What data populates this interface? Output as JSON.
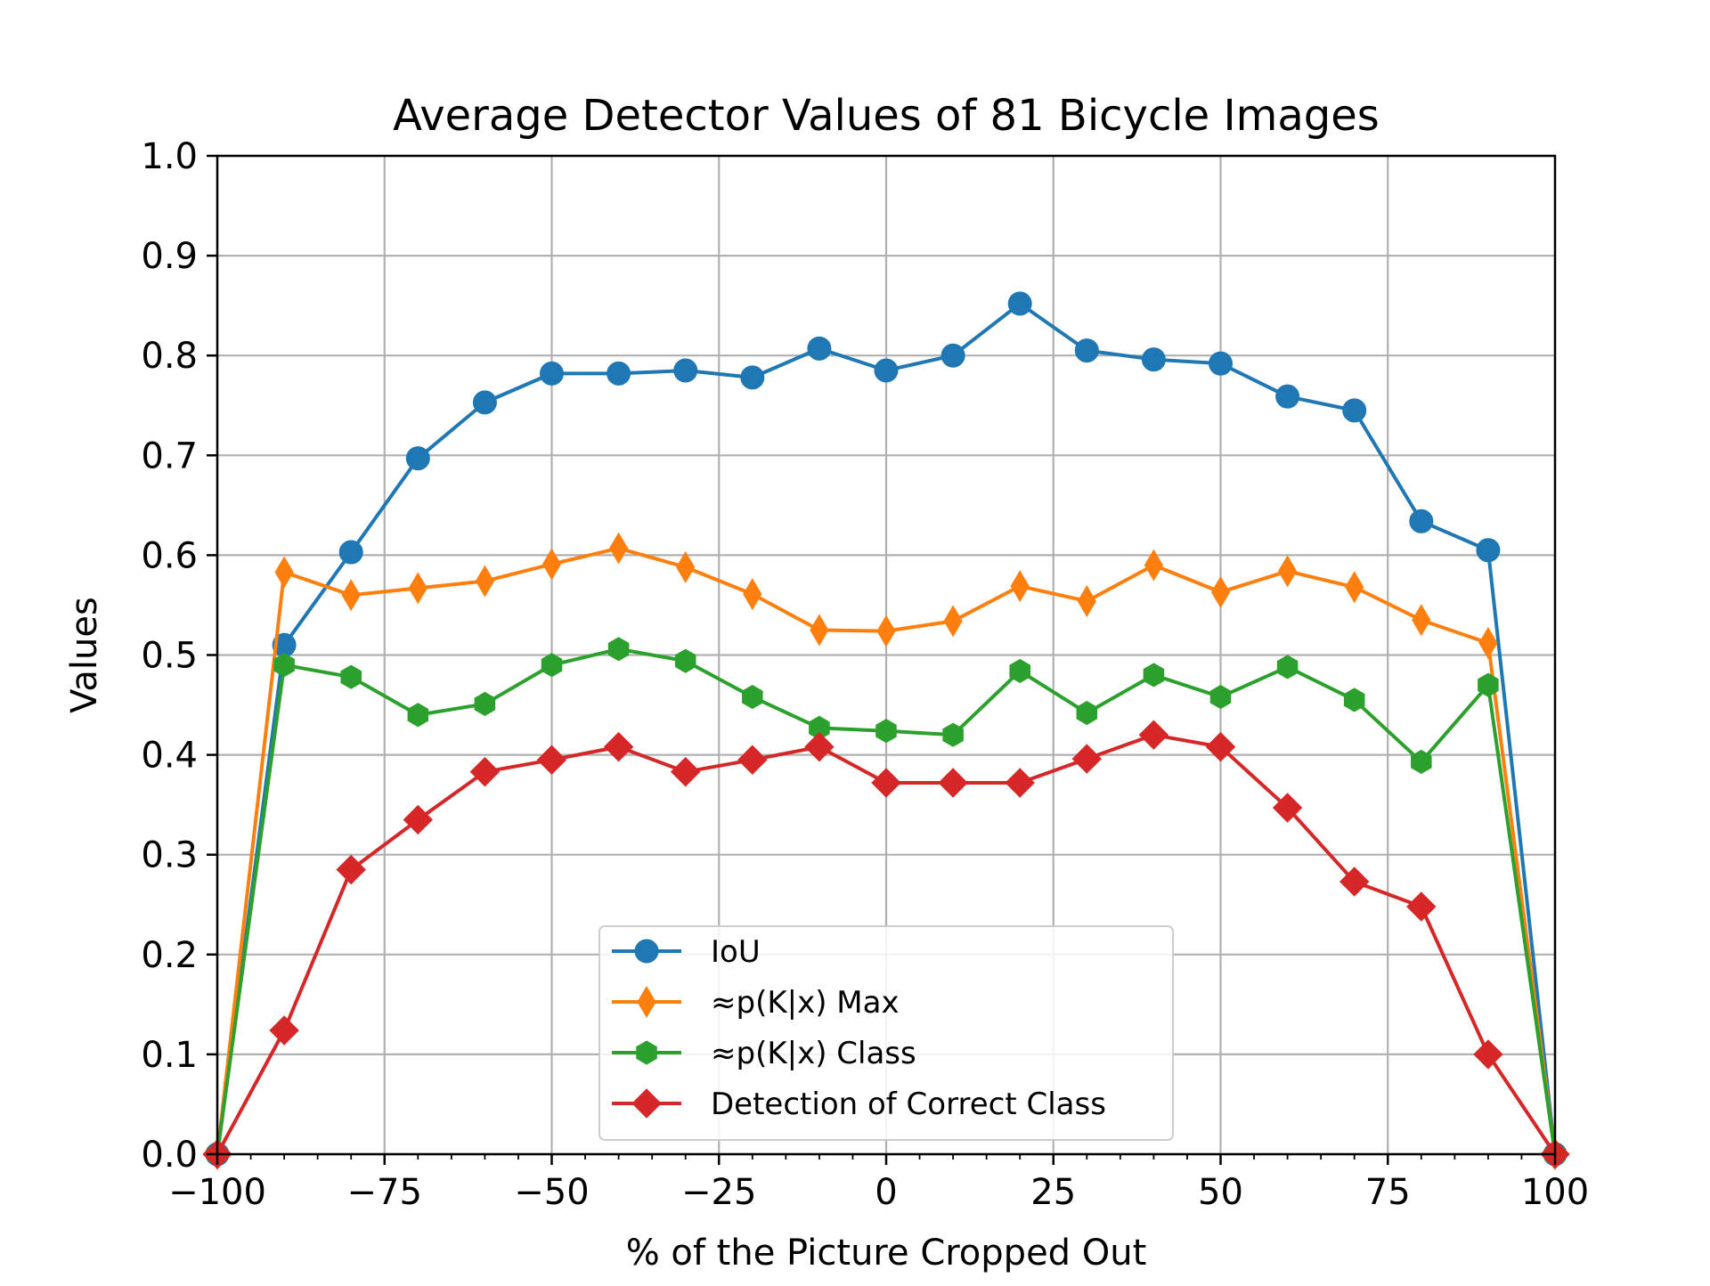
{
  "chart_data": {
    "type": "line",
    "title": "Average Detector Values of 81 Bicycle Images",
    "xlabel": "% of the Picture Cropped Out",
    "ylabel": "Values",
    "xlim": [
      -100,
      100
    ],
    "ylim": [
      0.0,
      1.0
    ],
    "grid": true,
    "legend_position": "lower center",
    "x_ticks": [
      -100,
      -75,
      -50,
      -25,
      0,
      25,
      50,
      75,
      100
    ],
    "x_tick_labels": [
      "−100",
      "−75",
      "−50",
      "−25",
      "0",
      "25",
      "50",
      "75",
      "100"
    ],
    "y_ticks": [
      0.0,
      0.1,
      0.2,
      0.3,
      0.4,
      0.5,
      0.6,
      0.7,
      0.8,
      0.9,
      1.0
    ],
    "y_tick_labels": [
      "0.0",
      "0.1",
      "0.2",
      "0.3",
      "0.4",
      "0.5",
      "0.6",
      "0.7",
      "0.8",
      "0.9",
      "1.0"
    ],
    "x": [
      -100,
      -90,
      -80,
      -70,
      -60,
      -50,
      -40,
      -30,
      -20,
      -10,
      0,
      10,
      20,
      30,
      40,
      50,
      60,
      70,
      80,
      90,
      100
    ],
    "series": [
      {
        "name": "IoU",
        "color": "#1f77b4",
        "marker": "circle",
        "values": [
          0.0,
          0.51,
          0.603,
          0.697,
          0.753,
          0.782,
          0.782,
          0.785,
          0.778,
          0.807,
          0.785,
          0.8,
          0.852,
          0.805,
          0.796,
          0.792,
          0.759,
          0.745,
          0.634,
          0.605,
          0.0
        ]
      },
      {
        "name": "≈p(K|x) Max",
        "color": "#ff7f0e",
        "marker": "thin-diamond",
        "values": [
          0.0,
          0.583,
          0.56,
          0.567,
          0.574,
          0.591,
          0.607,
          0.588,
          0.561,
          0.525,
          0.524,
          0.534,
          0.569,
          0.554,
          0.59,
          0.563,
          0.584,
          0.568,
          0.535,
          0.512,
          0.0
        ]
      },
      {
        "name": "≈p(K|x) Class",
        "color": "#2ca02c",
        "marker": "hexagon",
        "values": [
          0.0,
          0.49,
          0.478,
          0.44,
          0.451,
          0.49,
          0.506,
          0.494,
          0.458,
          0.427,
          0.424,
          0.42,
          0.484,
          0.442,
          0.48,
          0.458,
          0.488,
          0.455,
          0.393,
          0.47,
          0.0
        ]
      },
      {
        "name": "Detection of Correct Class",
        "color": "#d62728",
        "marker": "diamond",
        "values": [
          0.0,
          0.124,
          0.285,
          0.335,
          0.383,
          0.395,
          0.408,
          0.383,
          0.395,
          0.408,
          0.372,
          0.372,
          0.372,
          0.396,
          0.42,
          0.408,
          0.347,
          0.273,
          0.248,
          0.1,
          0.0
        ]
      }
    ]
  }
}
